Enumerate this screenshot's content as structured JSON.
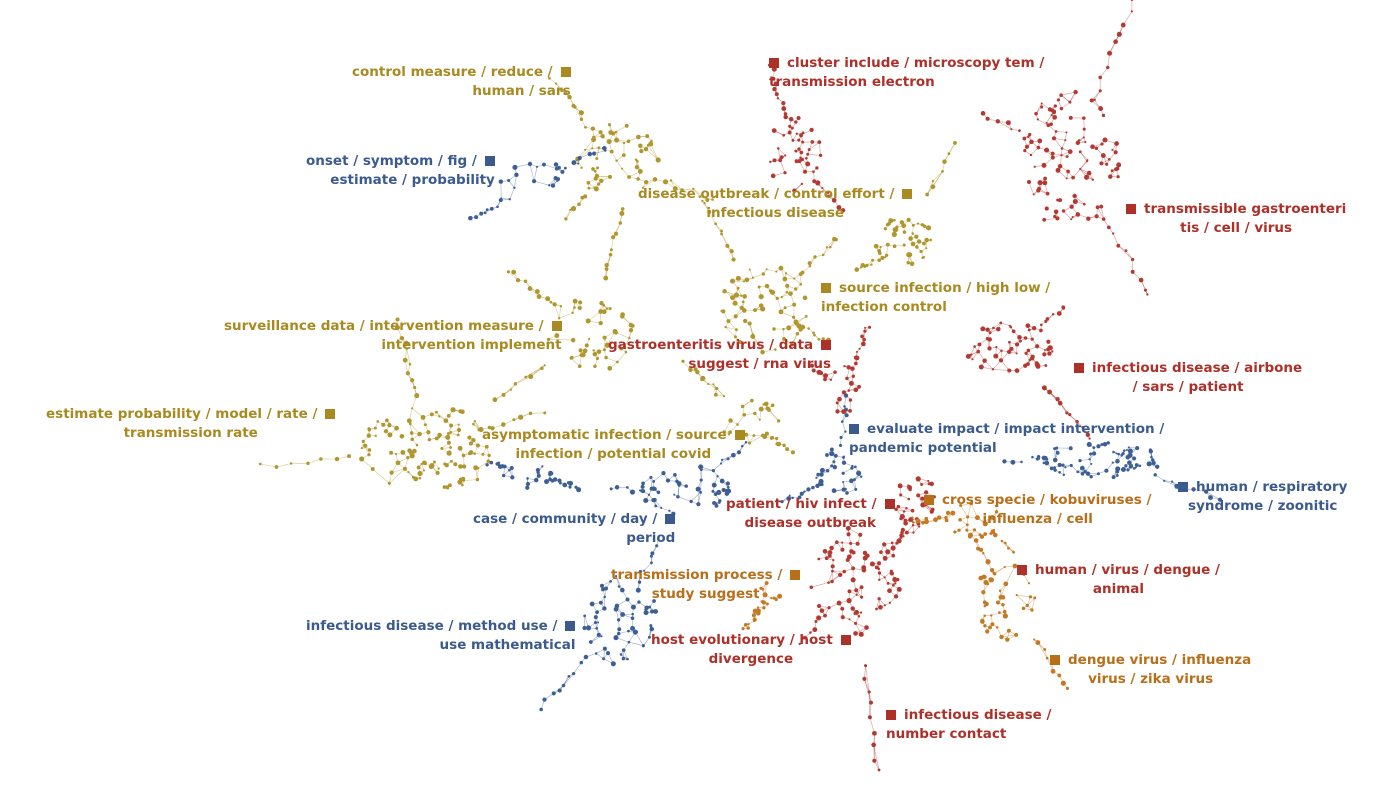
{
  "colors": {
    "gold": "#b0962e",
    "orange": "#c27a26",
    "red": "#b23a33",
    "blue": "#3e5f94",
    "gold_text": "#a88a20",
    "orange_text": "#b86f1a",
    "red_text": "#ad3029",
    "blue_text": "#3b5a8e"
  },
  "topics": [
    {
      "id": "t1",
      "color": "gold_text",
      "lines": [
        "control measure / reduce /",
        "human / sars"
      ]
    },
    {
      "id": "t2",
      "color": "red_text",
      "lines": [
        "cluster include / microscopy tem /",
        "transmission electron"
      ]
    },
    {
      "id": "t3",
      "color": "blue_text",
      "lines": [
        "onset / symptom / fig /",
        "estimate / probability"
      ]
    },
    {
      "id": "t4",
      "color": "gold_text",
      "lines": [
        "disease outbreak / control effort /",
        "infectious disease"
      ]
    },
    {
      "id": "t5",
      "color": "red_text",
      "lines": [
        "transmissible gastroenteri",
        "tis / cell / virus"
      ]
    },
    {
      "id": "t6",
      "color": "gold_text",
      "lines": [
        "source infection / high low /",
        "infection control"
      ]
    },
    {
      "id": "t7",
      "color": "gold_text",
      "lines": [
        "surveillance data / intervention measure /",
        "intervention implement"
      ]
    },
    {
      "id": "t8",
      "color": "red_text",
      "lines": [
        "gastroenteritis virus / data",
        "suggest / rna virus"
      ]
    },
    {
      "id": "t9",
      "color": "red_text",
      "lines": [
        "infectious disease / airbone",
        "/ sars / patient"
      ]
    },
    {
      "id": "t10",
      "color": "gold_text",
      "lines": [
        "estimate probability / model / rate /",
        "transmission rate"
      ]
    },
    {
      "id": "t11",
      "color": "gold_text",
      "lines": [
        "asymptomatic infection / source",
        "infection / potential covid"
      ]
    },
    {
      "id": "t12",
      "color": "blue_text",
      "lines": [
        "evaluate impact / impact intervention /",
        "pandemic potential"
      ]
    },
    {
      "id": "t13",
      "color": "blue_text",
      "lines": [
        "human / respiratory",
        "syndrome / zoonitic"
      ]
    },
    {
      "id": "t14",
      "color": "red_text",
      "lines": [
        "patient / hiv infect /",
        "disease outbreak"
      ]
    },
    {
      "id": "t15",
      "color": "orange_text",
      "lines": [
        "cross specie / kobuviruses /",
        "influenza / cell"
      ]
    },
    {
      "id": "t16",
      "color": "blue_text",
      "lines": [
        "case / community / day /",
        "period"
      ]
    },
    {
      "id": "t17",
      "color": "orange_text",
      "lines": [
        "transmission process /",
        "study suggest"
      ]
    },
    {
      "id": "t18",
      "color": "red_text",
      "lines": [
        "human / virus / dengue /",
        "animal"
      ]
    },
    {
      "id": "t19",
      "color": "blue_text",
      "lines": [
        "infectious disease / method use /",
        "use mathematical"
      ]
    },
    {
      "id": "t20",
      "color": "red_text",
      "lines": [
        "host evolutionary / host",
        "divergence"
      ]
    },
    {
      "id": "t21",
      "color": "orange_text",
      "lines": [
        "dengue virus / influenza",
        "virus / zika virus"
      ]
    },
    {
      "id": "t22",
      "color": "red_text",
      "lines": [
        "infectious disease /",
        "number contact"
      ]
    }
  ]
}
